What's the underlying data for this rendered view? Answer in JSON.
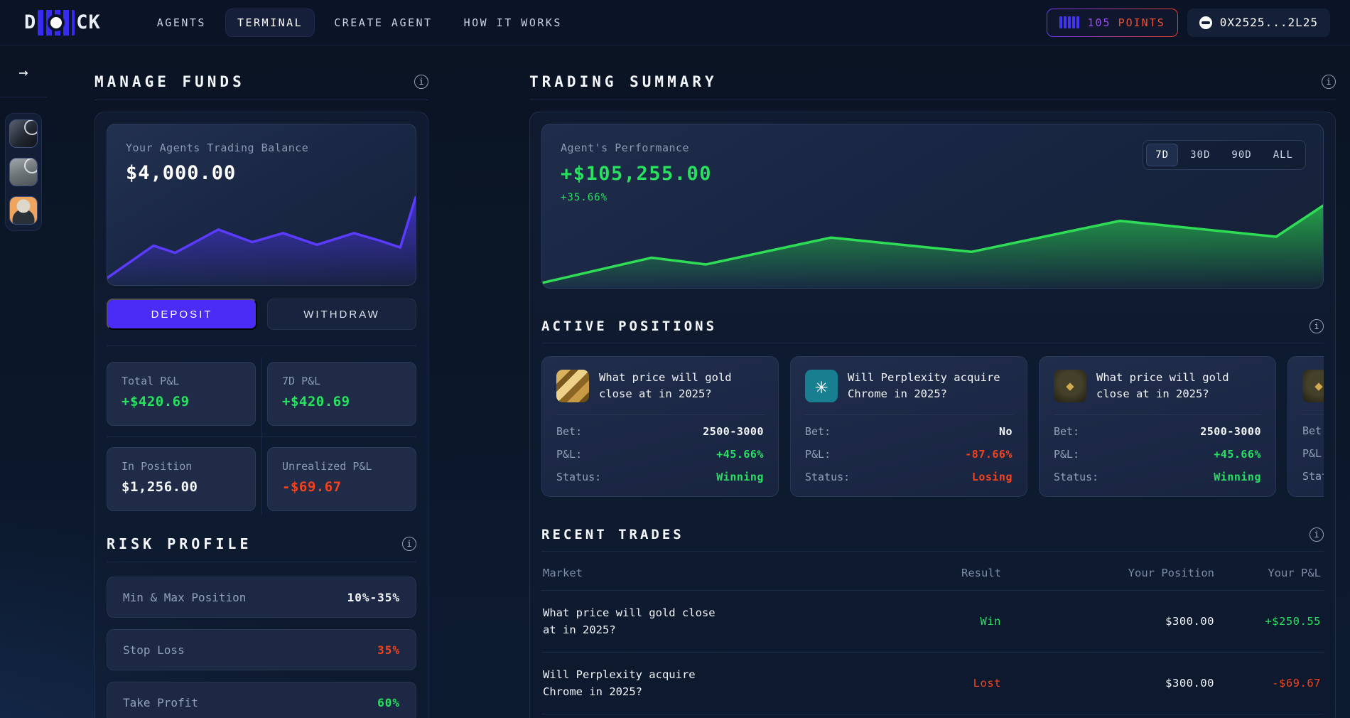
{
  "navbar": {
    "logo": {
      "prefix": "D",
      "suffix": "CK"
    },
    "items": [
      {
        "label": "AGENTS",
        "active": false
      },
      {
        "label": "TERMINAL",
        "active": true
      },
      {
        "label": "CREATE AGENT",
        "active": false
      },
      {
        "label": "HOW IT WORKS",
        "active": false
      }
    ],
    "points_badge": {
      "value": "105",
      "label": "POINTS"
    },
    "wallet": {
      "address": "0X2525...2L25"
    }
  },
  "sidebar": {
    "agents": [
      {
        "icon": "anime-avatar"
      },
      {
        "icon": "statue-avatar"
      },
      {
        "icon": "investor-avatar"
      }
    ]
  },
  "manage_funds": {
    "title": "MANAGE FUNDS",
    "balance_card": {
      "label": "Your Agents Trading Balance",
      "value": "$4,000.00"
    },
    "buttons": {
      "deposit": "DEPOSIT",
      "withdraw": "WITHDRAW"
    },
    "stats": [
      {
        "label": "Total P&L",
        "value": "+$420.69",
        "tone": "pos"
      },
      {
        "label": "7D P&L",
        "value": "+$420.69",
        "tone": "pos"
      },
      {
        "label": "In Position",
        "value": "$1,256.00",
        "tone": "neutral"
      },
      {
        "label": "Unrealized P&L",
        "value": "-$69.67",
        "tone": "neg"
      }
    ],
    "risk_profile": {
      "title": "RISK PROFILE",
      "rows": [
        {
          "label": "Min & Max Position",
          "value": "10%-35%",
          "tone": "neutral"
        },
        {
          "label": "Stop Loss",
          "value": "35%",
          "tone": "neg"
        },
        {
          "label": "Take Profit",
          "value": "60%",
          "tone": "pos"
        }
      ]
    }
  },
  "trading_summary": {
    "title": "TRADING SUMMARY",
    "performance": {
      "label": "Agent's Performance",
      "value": "+$105,255.00",
      "percent": "+35.66%"
    },
    "ranges": [
      {
        "label": "7D",
        "active": true
      },
      {
        "label": "30D",
        "active": false
      },
      {
        "label": "90D",
        "active": false
      },
      {
        "label": "ALL",
        "active": false
      }
    ],
    "active_positions": {
      "title": "ACTIVE POSITIONS",
      "row_labels": {
        "bet": "Bet:",
        "pnl": "P&L:",
        "status": "Status:"
      },
      "cards": [
        {
          "icon": "gold",
          "title": "What price will gold close at in 2025?",
          "bet": "2500-3000",
          "pnl": "+45.66%",
          "pnl_tone": "pos",
          "status": "Winning",
          "status_tone": "pos"
        },
        {
          "icon": "perplexity",
          "title": "Will Perplexity acquire Chrome in 2025?",
          "bet": "No",
          "pnl": "-87.66%",
          "pnl_tone": "neg",
          "status": "Losing",
          "status_tone": "neg"
        },
        {
          "icon": "gold-eth",
          "title": "What price will gold close at in 2025?",
          "bet": "2500-3000",
          "pnl": "+45.66%",
          "pnl_tone": "pos",
          "status": "Winning",
          "status_tone": "pos"
        },
        {
          "icon": "gold-eth",
          "title": "",
          "bet": "",
          "pnl": "",
          "pnl_tone": "neutral",
          "status": "",
          "status_tone": "neutral"
        }
      ]
    },
    "recent_trades": {
      "title": "RECENT TRADES",
      "columns": [
        "Market",
        "Result",
        "Your Position",
        "Your P&L"
      ],
      "rows": [
        {
          "market": "What price will gold close at in 2025?",
          "result": "Win",
          "result_tone": "pos",
          "position": "$300.00",
          "position_tone": "neutral",
          "pnl": "+$250.55",
          "pnl_tone": "pos"
        },
        {
          "market": "Will Perplexity acquire Chrome in 2025?",
          "result": "Lost",
          "result_tone": "neg",
          "position": "$300.00",
          "position_tone": "neutral",
          "pnl": "-$69.67",
          "pnl_tone": "neg"
        }
      ]
    }
  },
  "chart_data": [
    {
      "type": "area",
      "title": "Your Agents Trading Balance",
      "line_color": "#5a3bff",
      "fill_top": "#4a34e8",
      "legend": "none",
      "axes": "none",
      "points": [
        [
          0,
          0.08
        ],
        [
          0.15,
          0.44
        ],
        [
          0.22,
          0.36
        ],
        [
          0.36,
          0.62
        ],
        [
          0.47,
          0.48
        ],
        [
          0.57,
          0.58
        ],
        [
          0.68,
          0.45
        ],
        [
          0.8,
          0.58
        ],
        [
          0.88,
          0.5
        ],
        [
          0.95,
          0.42
        ],
        [
          1,
          0.98
        ]
      ]
    },
    {
      "type": "area",
      "title": "Agent's Performance",
      "line_color": "#2fdc55",
      "fill_top": "#27c14c",
      "legend": "none",
      "axes": "none",
      "points": [
        [
          0,
          0.06
        ],
        [
          0.14,
          0.36
        ],
        [
          0.21,
          0.28
        ],
        [
          0.37,
          0.6
        ],
        [
          0.55,
          0.43
        ],
        [
          0.74,
          0.8
        ],
        [
          0.94,
          0.61
        ],
        [
          1,
          0.98
        ]
      ]
    }
  ],
  "colors": {
    "positive": "#27e15f",
    "negative": "#f4421f",
    "accent_purple": "#4b2bf6",
    "badge_gradient": [
      "#6d3bf0",
      "#e2402e"
    ],
    "background": "#0b1526"
  }
}
